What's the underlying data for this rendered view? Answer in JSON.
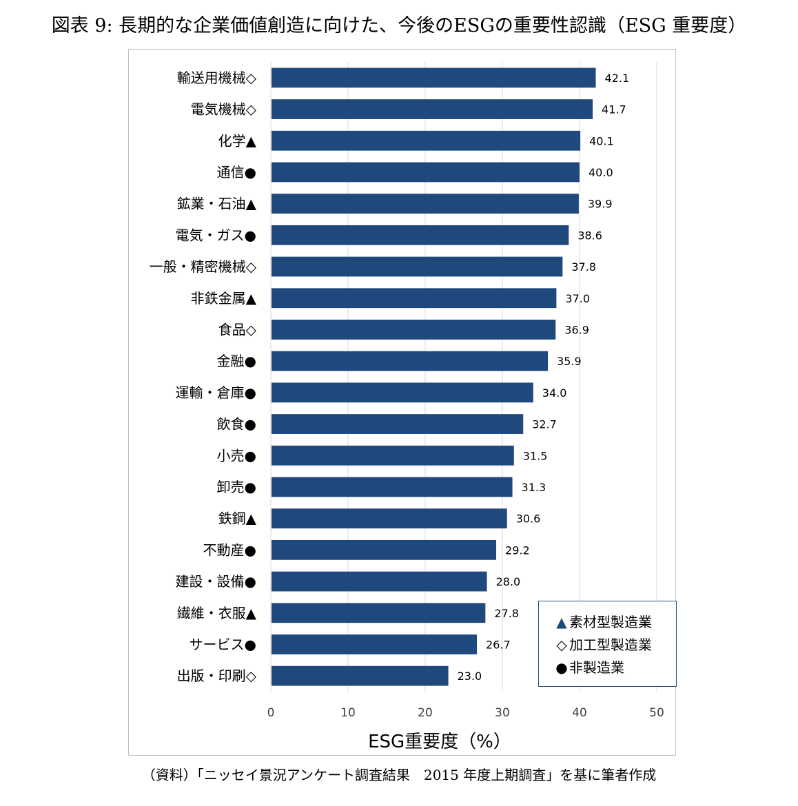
{
  "figure": {
    "title": "図表 9: 長期的な企業価値創造に向けた、今後のESGの重要性認識（ESG 重要度）",
    "source": "（資料）「ニッセイ景況アンケート調査結果　2015 年度上期調査」を基に筆者作成"
  },
  "legend": {
    "items": [
      {
        "marker": "▲",
        "label": "素材型製造業"
      },
      {
        "marker": "◇",
        "label": "加工型製造業"
      },
      {
        "marker": "●",
        "label": "非製造業"
      }
    ]
  },
  "chart_data": {
    "type": "bar",
    "orientation": "horizontal",
    "title": "",
    "xlabel": "ESG重要度（%）",
    "ylabel": "",
    "xlim": [
      0,
      50
    ],
    "xticks": [
      0,
      10,
      20,
      30,
      40,
      50
    ],
    "grid": true,
    "legend_position": "bottom-right",
    "bar_color": "#1f497d",
    "gridline_color": "#d9d9d9",
    "categories": [
      "輸送用機械◇",
      "電気機械◇",
      "化学▲",
      "通信●",
      "鉱業・石油▲",
      "電気・ガス●",
      "一般・精密機械◇",
      "非鉄金属▲",
      "食品◇",
      "金融●",
      "運輸・倉庫●",
      "飲食●",
      "小売●",
      "卸売●",
      "鉄鋼▲",
      "不動産●",
      "建設・設備●",
      "繊維・衣服▲",
      "サービス●",
      "出版・印刷◇"
    ],
    "values": [
      42.1,
      41.7,
      40.1,
      40.0,
      39.9,
      38.6,
      37.8,
      37.0,
      36.9,
      35.9,
      34.0,
      32.7,
      31.5,
      31.3,
      30.6,
      29.2,
      28.0,
      27.8,
      26.7,
      23.0
    ],
    "value_labels": [
      "42.1",
      "41.7",
      "40.1",
      "40.0",
      "39.9",
      "38.6",
      "37.8",
      "37.0",
      "36.9",
      "35.9",
      "34.0",
      "32.7",
      "31.5",
      "31.3",
      "30.6",
      "29.2",
      "28.0",
      "27.8",
      "26.7",
      "23.0"
    ]
  }
}
